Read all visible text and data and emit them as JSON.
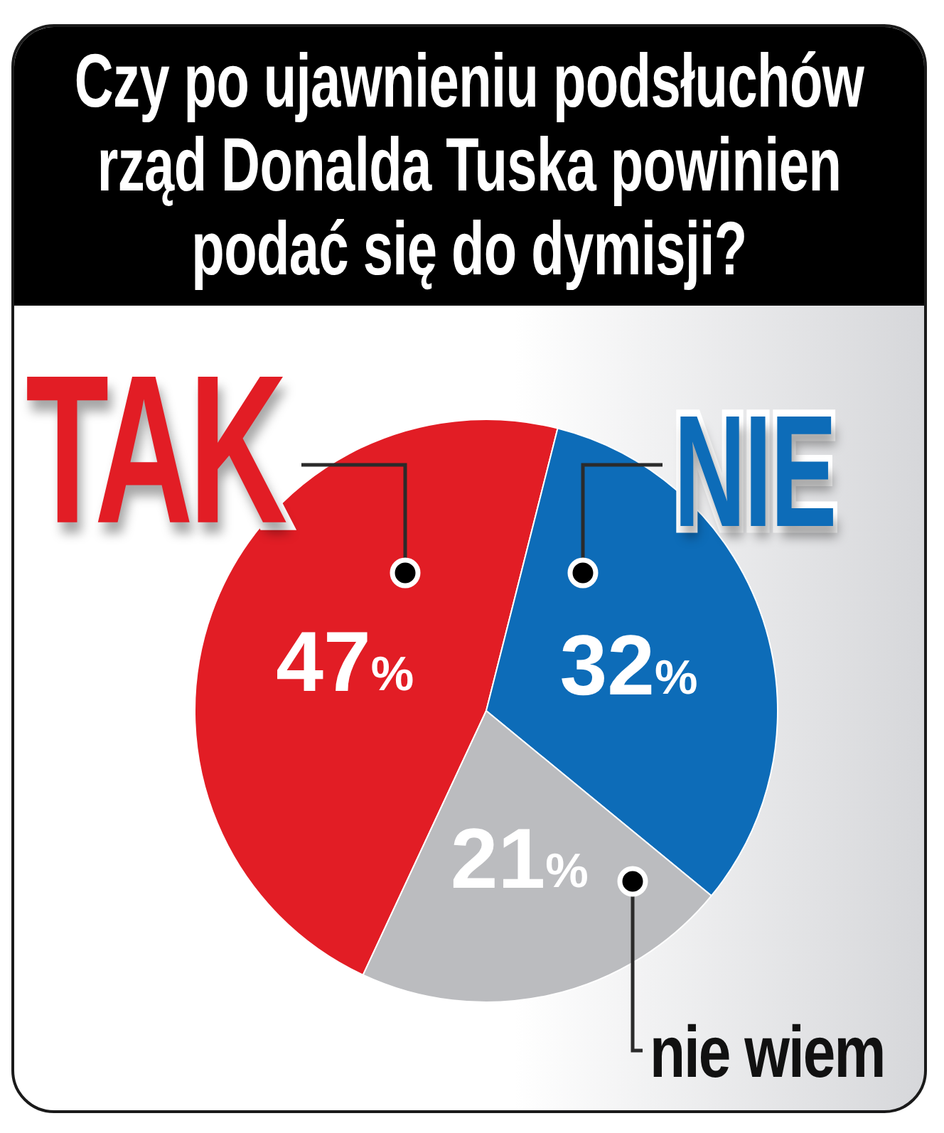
{
  "chart_data": {
    "type": "pie",
    "title": "Czy po ujawnieniu podsłuchów rząd Donalda Tuska powinien podać się do dymisji?",
    "categories": [
      "TAK",
      "NIE",
      "nie wiem"
    ],
    "values": [
      47,
      32,
      21
    ],
    "colors": [
      "#e21d25",
      "#0d6cb8",
      "#bbbcbf"
    ],
    "value_labels": [
      "47%",
      "32%",
      "21%"
    ],
    "legend": false
  }
}
